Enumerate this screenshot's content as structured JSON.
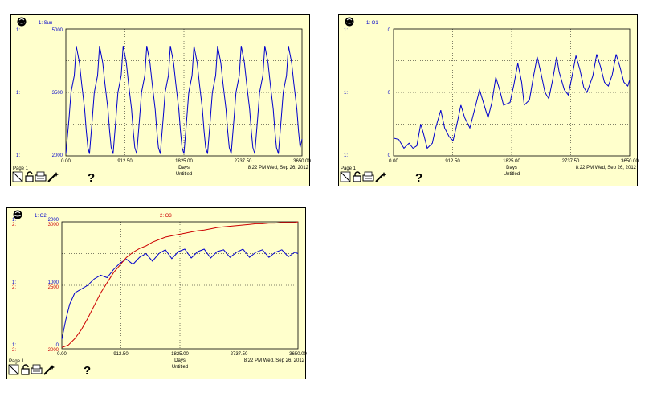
{
  "common": {
    "page_label": "Page 1",
    "x_label": "Days",
    "subtitle": "Untitled",
    "timestamp": "8:22 PM  Wed, Sep 26, 2012",
    "help_label": "?",
    "icons": [
      "globe-icon",
      "page-select-icon",
      "lock-icon",
      "print-icon",
      "wand-icon",
      "help-icon"
    ]
  },
  "chart_data": [
    {
      "type": "line",
      "x_ticks": [
        "0.00",
        "912.50",
        "1825.00",
        "2737.50",
        "3650.00"
      ],
      "xlim": [
        0,
        3650
      ],
      "axes": [
        {
          "marker": "1:",
          "ticks": [
            "5000",
            "3500",
            "2000"
          ],
          "ylim": [
            2000,
            5000
          ],
          "color": "#0000cc"
        }
      ],
      "series": [
        {
          "name": "1: Sun",
          "axis": 0,
          "color": "#0000cc",
          "x": [
            0,
            50,
            80,
            130,
            160,
            210,
            245,
            290,
            315,
            340,
            365,
            410,
            440,
            490,
            520,
            570,
            605,
            650,
            675,
            700,
            730,
            775,
            805,
            855,
            885,
            935,
            970,
            1015,
            1040,
            1065,
            1095,
            1140,
            1170,
            1220,
            1250,
            1300,
            1335,
            1380,
            1405,
            1430,
            1460,
            1505,
            1535,
            1585,
            1615,
            1665,
            1700,
            1745,
            1770,
            1795,
            1825,
            1870,
            1900,
            1950,
            1980,
            2030,
            2065,
            2110,
            2135,
            2160,
            2190,
            2235,
            2265,
            2315,
            2345,
            2395,
            2430,
            2475,
            2500,
            2525,
            2555,
            2600,
            2630,
            2680,
            2710,
            2760,
            2795,
            2840,
            2865,
            2890,
            2920,
            2965,
            2995,
            3045,
            3075,
            3125,
            3160,
            3205,
            3230,
            3255,
            3285,
            3330,
            3360,
            3410,
            3440,
            3490,
            3525,
            3570,
            3595,
            3620,
            3650
          ],
          "y": [
            2050,
            2900,
            3500,
            3900,
            4600,
            4200,
            3700,
            3100,
            2600,
            2200,
            2050,
            2900,
            3500,
            3900,
            4600,
            4200,
            3700,
            3100,
            2600,
            2200,
            2050,
            2900,
            3500,
            3900,
            4600,
            4200,
            3700,
            3100,
            2600,
            2200,
            2050,
            2900,
            3500,
            3900,
            4600,
            4200,
            3700,
            3100,
            2600,
            2200,
            2050,
            2900,
            3500,
            3900,
            4600,
            4200,
            3700,
            3100,
            2600,
            2200,
            2050,
            2900,
            3500,
            3900,
            4600,
            4200,
            3700,
            3100,
            2600,
            2200,
            2050,
            2900,
            3500,
            3900,
            4600,
            4200,
            3700,
            3100,
            2600,
            2200,
            2050,
            2900,
            3500,
            3900,
            4600,
            4200,
            3700,
            3100,
            2600,
            2200,
            2050,
            2900,
            3500,
            3900,
            4600,
            4200,
            3700,
            3100,
            2600,
            2200,
            2050,
            2900,
            3500,
            3900,
            4600,
            4200,
            3700,
            3100,
            2600,
            2200,
            2400
          ]
        }
      ]
    },
    {
      "type": "line",
      "x_ticks": [
        "0.00",
        "912.50",
        "1825.00",
        "2737.50",
        "3650.00"
      ],
      "xlim": [
        0,
        3650
      ],
      "axes": [
        {
          "marker": "1:",
          "ticks": [
            "0",
            "0",
            "0"
          ],
          "ylim": [
            0,
            1
          ],
          "color": "#0000cc"
        }
      ],
      "series": [
        {
          "name": "1: O1",
          "axis": 0,
          "color": "#0000cc",
          "x": [
            0,
            80,
            160,
            240,
            300,
            360,
            420,
            460,
            520,
            600,
            650,
            730,
            790,
            860,
            920,
            980,
            1040,
            1100,
            1180,
            1240,
            1330,
            1400,
            1460,
            1520,
            1580,
            1640,
            1700,
            1800,
            1860,
            1920,
            1980,
            2020,
            2100,
            2160,
            2220,
            2280,
            2340,
            2400,
            2460,
            2520,
            2560,
            2640,
            2700,
            2760,
            2820,
            2880,
            2940,
            2990,
            3080,
            3140,
            3200,
            3260,
            3320,
            3380,
            3440,
            3500,
            3560,
            3620,
            3650
          ],
          "y": [
            0.14,
            0.13,
            0.06,
            0.1,
            0.06,
            0.08,
            0.25,
            0.18,
            0.06,
            0.1,
            0.22,
            0.36,
            0.22,
            0.15,
            0.12,
            0.25,
            0.4,
            0.3,
            0.22,
            0.34,
            0.52,
            0.4,
            0.3,
            0.42,
            0.62,
            0.52,
            0.4,
            0.42,
            0.56,
            0.73,
            0.58,
            0.4,
            0.44,
            0.62,
            0.78,
            0.65,
            0.5,
            0.45,
            0.6,
            0.78,
            0.66,
            0.52,
            0.48,
            0.63,
            0.79,
            0.68,
            0.54,
            0.5,
            0.63,
            0.8,
            0.7,
            0.58,
            0.55,
            0.64,
            0.8,
            0.7,
            0.58,
            0.55,
            0.6
          ]
        }
      ]
    },
    {
      "type": "line",
      "x_ticks": [
        "0.00",
        "912.50",
        "1825.00",
        "2737.50",
        "3650.00"
      ],
      "xlim": [
        0,
        3650
      ],
      "axes": [
        {
          "marker": "1:",
          "ticks": [
            "2000",
            "1000",
            "0"
          ],
          "ylim": [
            0,
            2000
          ],
          "color": "#0000cc"
        },
        {
          "marker": "2:",
          "ticks": [
            "3000",
            "2500",
            "2000"
          ],
          "ylim": [
            2000,
            3000
          ],
          "color": "#cc0000"
        }
      ],
      "series": [
        {
          "name": "1: O2",
          "axis": 0,
          "color": "#0000cc",
          "x": [
            0,
            60,
            120,
            200,
            300,
            400,
            500,
            600,
            700,
            800,
            900,
            1000,
            1100,
            1200,
            1300,
            1400,
            1500,
            1600,
            1700,
            1800,
            1900,
            2000,
            2100,
            2200,
            2300,
            2400,
            2500,
            2600,
            2700,
            2800,
            2900,
            3000,
            3100,
            3200,
            3300,
            3400,
            3500,
            3600,
            3650
          ],
          "y": [
            150,
            450,
            700,
            880,
            940,
            1000,
            1100,
            1160,
            1120,
            1250,
            1350,
            1410,
            1330,
            1440,
            1500,
            1380,
            1500,
            1560,
            1420,
            1530,
            1570,
            1430,
            1530,
            1570,
            1430,
            1530,
            1560,
            1440,
            1520,
            1570,
            1440,
            1520,
            1560,
            1440,
            1520,
            1560,
            1450,
            1520,
            1500
          ]
        },
        {
          "name": "2: O3",
          "axis": 1,
          "color": "#cc0000",
          "x": [
            0,
            100,
            200,
            300,
            400,
            500,
            600,
            700,
            800,
            900,
            1000,
            1100,
            1200,
            1300,
            1400,
            1500,
            1600,
            1700,
            1800,
            1900,
            2000,
            2100,
            2200,
            2300,
            2400,
            2500,
            2600,
            2700,
            2800,
            2900,
            3000,
            3100,
            3200,
            3300,
            3400,
            3500,
            3600,
            3650
          ],
          "y": [
            2010,
            2030,
            2080,
            2150,
            2240,
            2340,
            2440,
            2520,
            2600,
            2660,
            2720,
            2760,
            2790,
            2810,
            2840,
            2860,
            2880,
            2890,
            2900,
            2910,
            2920,
            2930,
            2935,
            2945,
            2955,
            2960,
            2965,
            2970,
            2975,
            2980,
            2985,
            2985,
            2990,
            2990,
            2995,
            2995,
            2995,
            3000
          ]
        }
      ]
    }
  ]
}
